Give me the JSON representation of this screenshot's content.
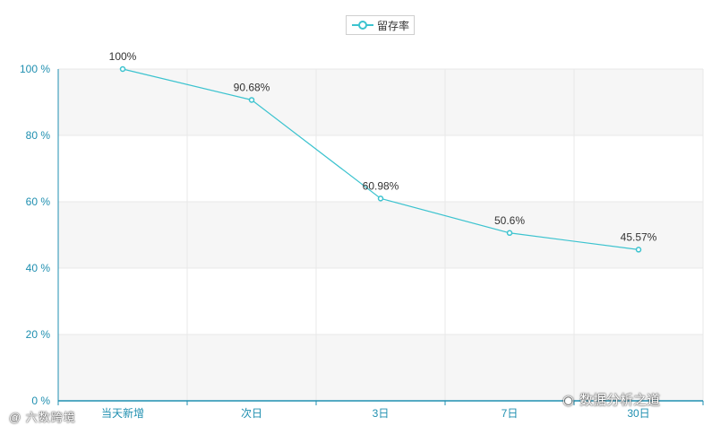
{
  "chart_data": {
    "type": "line",
    "categories": [
      "当天新增",
      "次日",
      "3日",
      "7日",
      "30日"
    ],
    "series": [
      {
        "name": "留存率",
        "values": [
          100,
          90.68,
          60.98,
          50.6,
          45.57
        ],
        "labels": [
          "100%",
          "90.68%",
          "60.98%",
          "50.6%",
          "45.57%"
        ]
      }
    ],
    "yticks": [
      "0 %",
      "20 %",
      "40 %",
      "60 %",
      "80 %",
      "100 %"
    ],
    "ylim": [
      0,
      100
    ],
    "grid": true,
    "legend_position": "top-center"
  },
  "colors": {
    "series": "#3cc3cf",
    "axis": "#1f8fb0",
    "label": "#333333",
    "band": "#f6f6f6",
    "grid": "#e8e8e8"
  },
  "watermarks": {
    "left": "@ 六数跨境",
    "right": "数据分析之道",
    "right_icon": "wechat-icon"
  }
}
